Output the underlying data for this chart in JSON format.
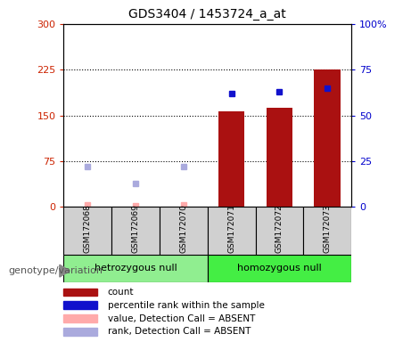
{
  "title": "GDS3404 / 1453724_a_at",
  "samples": [
    "GSM172068",
    "GSM172069",
    "GSM172070",
    "GSM172071",
    "GSM172072",
    "GSM172073"
  ],
  "group1_label": "hetrozygous null",
  "group2_label": "homozygous null",
  "group1_color": "#90ee90",
  "group2_color": "#44ee44",
  "bar_values": [
    null,
    null,
    null,
    157,
    162,
    226
  ],
  "percentile_rank_pct": [
    null,
    null,
    null,
    62,
    63,
    65
  ],
  "value_absent": [
    3,
    2,
    3,
    null,
    null,
    null
  ],
  "rank_absent_pct": [
    22,
    13,
    22,
    null,
    null,
    null
  ],
  "ylim_left": [
    0,
    300
  ],
  "ylim_right": [
    0,
    100
  ],
  "yticks_left": [
    0,
    75,
    150,
    225,
    300
  ],
  "yticks_right": [
    0,
    25,
    50,
    75,
    100
  ],
  "ytick_labels_left": [
    "0",
    "75",
    "150",
    "225",
    "300"
  ],
  "ytick_labels_right": [
    "0",
    "25",
    "50",
    "75",
    "100%"
  ],
  "bar_color": "#aa1111",
  "rank_color": "#1111cc",
  "value_absent_color": "#ffaaaa",
  "rank_absent_color": "#aaaadd",
  "legend_items": [
    {
      "label": "count",
      "color": "#aa1111"
    },
    {
      "label": "percentile rank within the sample",
      "color": "#1111cc"
    },
    {
      "label": "value, Detection Call = ABSENT",
      "color": "#ffaaaa"
    },
    {
      "label": "rank, Detection Call = ABSENT",
      "color": "#aaaadd"
    }
  ],
  "genotype_label": "genotype/variation",
  "axis_label_color_left": "#cc2200",
  "axis_label_color_right": "#0000cc",
  "gray_box_color": "#d0d0d0"
}
